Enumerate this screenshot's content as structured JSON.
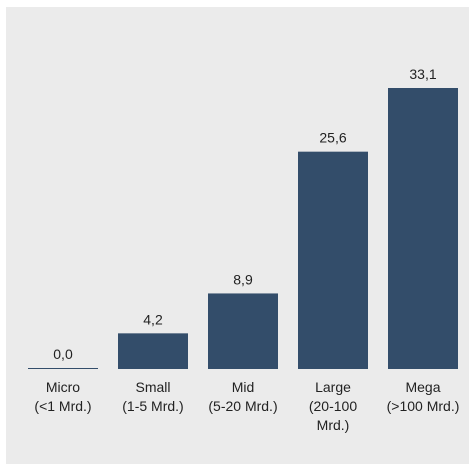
{
  "chart_data": {
    "type": "bar",
    "categories": [
      [
        "Micro",
        "(<1 Mrd.)"
      ],
      [
        "Small",
        "(1-5 Mrd.)"
      ],
      [
        "Mid",
        "(5-20 Mrd.)"
      ],
      [
        "Large",
        "(20-100",
        "Mrd.)"
      ],
      [
        "Mega",
        "(>100 Mrd.)"
      ]
    ],
    "values": [
      0.0,
      4.2,
      8.9,
      25.6,
      33.1
    ],
    "value_labels": [
      "0,0",
      "4,2",
      "8,9",
      "25,6",
      "33,1"
    ],
    "ylim": [
      0,
      33.1
    ],
    "grid": false,
    "bar_color": "#334d6a",
    "background_color": "#ebebeb"
  }
}
